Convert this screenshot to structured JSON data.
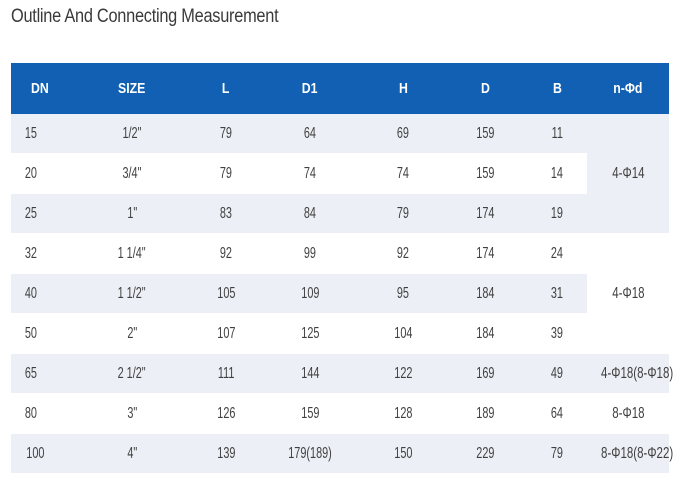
{
  "title": "Outline And Connecting Measurement",
  "headers": [
    "DN",
    "SIZE",
    "L",
    "D1",
    "H",
    "D",
    "B",
    "n-Φd"
  ],
  "rows": [
    {
      "dn": "15",
      "size": "1/2\"",
      "l": "79",
      "d1": "64",
      "h": "69",
      "d": "159",
      "b": "11"
    },
    {
      "dn": "20",
      "size": "3/4\"",
      "l": "79",
      "d1": "74",
      "h": "74",
      "d": "159",
      "b": "14"
    },
    {
      "dn": "25",
      "size": "1\"",
      "l": "83",
      "d1": "84",
      "h": "79",
      "d": "174",
      "b": "19"
    },
    {
      "dn": "32",
      "size": "1 1/4\"",
      "l": "92",
      "d1": "99",
      "h": "92",
      "d": "174",
      "b": "24"
    },
    {
      "dn": "40",
      "size": "1 1/2\"",
      "l": "105",
      "d1": "109",
      "h": "95",
      "d": "184",
      "b": "31"
    },
    {
      "dn": "50",
      "size": "2\"",
      "l": "107",
      "d1": "125",
      "h": "104",
      "d": "184",
      "b": "39"
    },
    {
      "dn": "65",
      "size": "2 1/2\"",
      "l": "111",
      "d1": "144",
      "h": "122",
      "d": "169",
      "b": "49"
    },
    {
      "dn": "80",
      "size": "3\"",
      "l": "126",
      "d1": "159",
      "h": "128",
      "d": "189",
      "b": "64"
    },
    {
      "dn": "100",
      "size": "4\"",
      "l": "139",
      "d1": "179(189)",
      "h": "150",
      "d": "229",
      "b": "79"
    }
  ],
  "nd_groups": [
    "4-Φ14",
    "4-Φ18",
    "4-Φ18(8-Φ18)",
    "8-Φ18",
    "8-Φ18(8-Φ22)"
  ],
  "colors": {
    "header_bg": "#1160b3",
    "header_text": "#ffffff",
    "shaded_row": "#eceff5"
  }
}
